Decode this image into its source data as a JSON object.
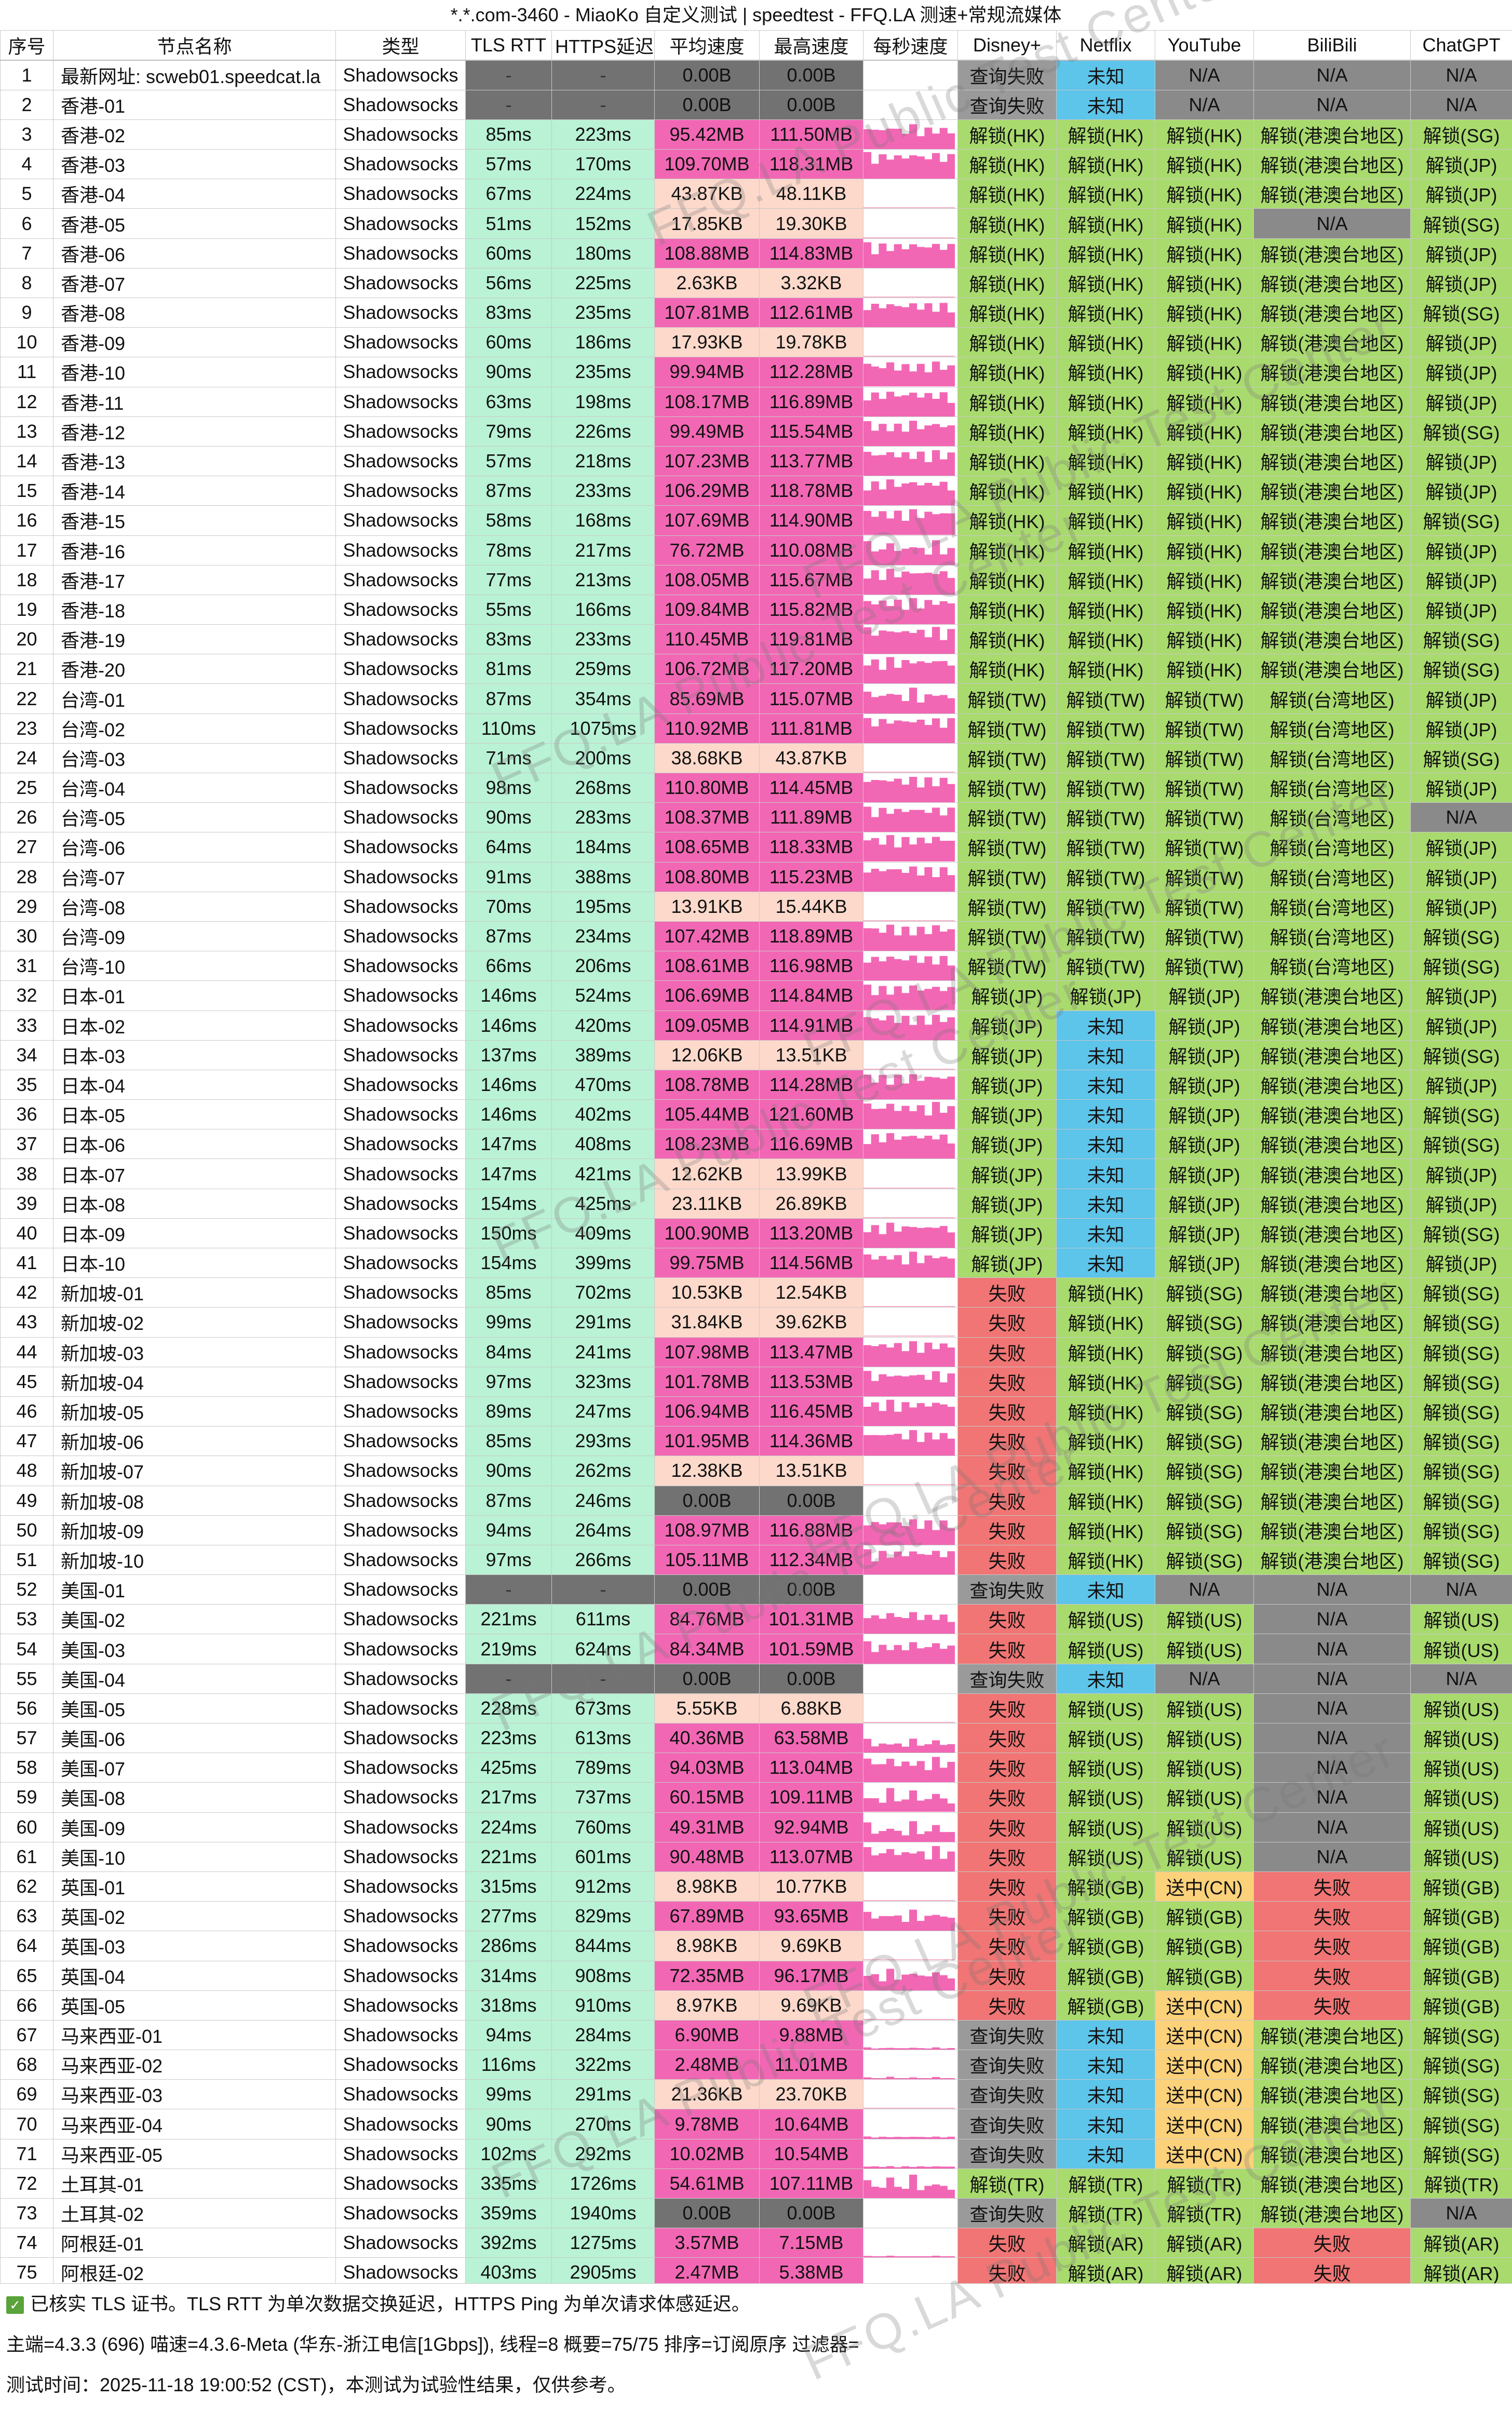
{
  "title": "*.*.com-3460 - MiaoKo 自定义测试 | speedtest - FFQ.LA 测速+常规流媒体",
  "columns": [
    "序号",
    "节点名称",
    "类型",
    "TLS RTT",
    "HTTPS延迟",
    "平均速度",
    "最高速度",
    "每秒速度",
    "Disney+",
    "Netflix",
    "YouTube",
    "BiliBili",
    "ChatGPT"
  ],
  "rows": [
    [
      "1",
      "最新网址: scweb01.speedcat.la",
      "Shadowsocks",
      "-",
      "-",
      "0.00B",
      "0.00B",
      "",
      "查询失败",
      "未知",
      "N/A",
      "N/A",
      "N/A"
    ],
    [
      "2",
      "香港-01",
      "Shadowsocks",
      "-",
      "-",
      "0.00B",
      "0.00B",
      "",
      "查询失败",
      "未知",
      "N/A",
      "N/A",
      "N/A"
    ],
    [
      "3",
      "香港-02",
      "Shadowsocks",
      "85ms",
      "223ms",
      "95.42MB",
      "111.50MB",
      "",
      "解锁(HK)",
      "解锁(HK)",
      "解锁(HK)",
      "解锁(港澳台地区)",
      "解锁(SG)"
    ],
    [
      "4",
      "香港-03",
      "Shadowsocks",
      "57ms",
      "170ms",
      "109.70MB",
      "118.31MB",
      "",
      "解锁(HK)",
      "解锁(HK)",
      "解锁(HK)",
      "解锁(港澳台地区)",
      "解锁(JP)"
    ],
    [
      "5",
      "香港-04",
      "Shadowsocks",
      "67ms",
      "224ms",
      "43.87KB",
      "48.11KB",
      "",
      "解锁(HK)",
      "解锁(HK)",
      "解锁(HK)",
      "解锁(港澳台地区)",
      "解锁(JP)"
    ],
    [
      "6",
      "香港-05",
      "Shadowsocks",
      "51ms",
      "152ms",
      "17.85KB",
      "19.30KB",
      "",
      "解锁(HK)",
      "解锁(HK)",
      "解锁(HK)",
      "N/A",
      "解锁(SG)"
    ],
    [
      "7",
      "香港-06",
      "Shadowsocks",
      "60ms",
      "180ms",
      "108.88MB",
      "114.83MB",
      "",
      "解锁(HK)",
      "解锁(HK)",
      "解锁(HK)",
      "解锁(港澳台地区)",
      "解锁(JP)"
    ],
    [
      "8",
      "香港-07",
      "Shadowsocks",
      "56ms",
      "225ms",
      "2.63KB",
      "3.32KB",
      "",
      "解锁(HK)",
      "解锁(HK)",
      "解锁(HK)",
      "解锁(港澳台地区)",
      "解锁(JP)"
    ],
    [
      "9",
      "香港-08",
      "Shadowsocks",
      "83ms",
      "235ms",
      "107.81MB",
      "112.61MB",
      "",
      "解锁(HK)",
      "解锁(HK)",
      "解锁(HK)",
      "解锁(港澳台地区)",
      "解锁(SG)"
    ],
    [
      "10",
      "香港-09",
      "Shadowsocks",
      "60ms",
      "186ms",
      "17.93KB",
      "19.78KB",
      "",
      "解锁(HK)",
      "解锁(HK)",
      "解锁(HK)",
      "解锁(港澳台地区)",
      "解锁(JP)"
    ],
    [
      "11",
      "香港-10",
      "Shadowsocks",
      "90ms",
      "235ms",
      "99.94MB",
      "112.28MB",
      "",
      "解锁(HK)",
      "解锁(HK)",
      "解锁(HK)",
      "解锁(港澳台地区)",
      "解锁(JP)"
    ],
    [
      "12",
      "香港-11",
      "Shadowsocks",
      "63ms",
      "198ms",
      "108.17MB",
      "116.89MB",
      "",
      "解锁(HK)",
      "解锁(HK)",
      "解锁(HK)",
      "解锁(港澳台地区)",
      "解锁(JP)"
    ],
    [
      "13",
      "香港-12",
      "Shadowsocks",
      "79ms",
      "226ms",
      "99.49MB",
      "115.54MB",
      "",
      "解锁(HK)",
      "解锁(HK)",
      "解锁(HK)",
      "解锁(港澳台地区)",
      "解锁(SG)"
    ],
    [
      "14",
      "香港-13",
      "Shadowsocks",
      "57ms",
      "218ms",
      "107.23MB",
      "113.77MB",
      "",
      "解锁(HK)",
      "解锁(HK)",
      "解锁(HK)",
      "解锁(港澳台地区)",
      "解锁(JP)"
    ],
    [
      "15",
      "香港-14",
      "Shadowsocks",
      "87ms",
      "233ms",
      "106.29MB",
      "118.78MB",
      "",
      "解锁(HK)",
      "解锁(HK)",
      "解锁(HK)",
      "解锁(港澳台地区)",
      "解锁(JP)"
    ],
    [
      "16",
      "香港-15",
      "Shadowsocks",
      "58ms",
      "168ms",
      "107.69MB",
      "114.90MB",
      "",
      "解锁(HK)",
      "解锁(HK)",
      "解锁(HK)",
      "解锁(港澳台地区)",
      "解锁(SG)"
    ],
    [
      "17",
      "香港-16",
      "Shadowsocks",
      "78ms",
      "217ms",
      "76.72MB",
      "110.08MB",
      "",
      "解锁(HK)",
      "解锁(HK)",
      "解锁(HK)",
      "解锁(港澳台地区)",
      "解锁(JP)"
    ],
    [
      "18",
      "香港-17",
      "Shadowsocks",
      "77ms",
      "213ms",
      "108.05MB",
      "115.67MB",
      "",
      "解锁(HK)",
      "解锁(HK)",
      "解锁(HK)",
      "解锁(港澳台地区)",
      "解锁(JP)"
    ],
    [
      "19",
      "香港-18",
      "Shadowsocks",
      "55ms",
      "166ms",
      "109.84MB",
      "115.82MB",
      "",
      "解锁(HK)",
      "解锁(HK)",
      "解锁(HK)",
      "解锁(港澳台地区)",
      "解锁(JP)"
    ],
    [
      "20",
      "香港-19",
      "Shadowsocks",
      "83ms",
      "233ms",
      "110.45MB",
      "119.81MB",
      "",
      "解锁(HK)",
      "解锁(HK)",
      "解锁(HK)",
      "解锁(港澳台地区)",
      "解锁(SG)"
    ],
    [
      "21",
      "香港-20",
      "Shadowsocks",
      "81ms",
      "259ms",
      "106.72MB",
      "117.20MB",
      "",
      "解锁(HK)",
      "解锁(HK)",
      "解锁(HK)",
      "解锁(港澳台地区)",
      "解锁(SG)"
    ],
    [
      "22",
      "台湾-01",
      "Shadowsocks",
      "87ms",
      "354ms",
      "85.69MB",
      "115.07MB",
      "",
      "解锁(TW)",
      "解锁(TW)",
      "解锁(TW)",
      "解锁(台湾地区)",
      "解锁(JP)"
    ],
    [
      "23",
      "台湾-02",
      "Shadowsocks",
      "110ms",
      "1075ms",
      "110.92MB",
      "111.81MB",
      "",
      "解锁(TW)",
      "解锁(TW)",
      "解锁(TW)",
      "解锁(台湾地区)",
      "解锁(JP)"
    ],
    [
      "24",
      "台湾-03",
      "Shadowsocks",
      "71ms",
      "200ms",
      "38.68KB",
      "43.87KB",
      "",
      "解锁(TW)",
      "解锁(TW)",
      "解锁(TW)",
      "解锁(台湾地区)",
      "解锁(SG)"
    ],
    [
      "25",
      "台湾-04",
      "Shadowsocks",
      "98ms",
      "268ms",
      "110.80MB",
      "114.45MB",
      "",
      "解锁(TW)",
      "解锁(TW)",
      "解锁(TW)",
      "解锁(台湾地区)",
      "解锁(JP)"
    ],
    [
      "26",
      "台湾-05",
      "Shadowsocks",
      "90ms",
      "283ms",
      "108.37MB",
      "111.89MB",
      "",
      "解锁(TW)",
      "解锁(TW)",
      "解锁(TW)",
      "解锁(台湾地区)",
      "N/A"
    ],
    [
      "27",
      "台湾-06",
      "Shadowsocks",
      "64ms",
      "184ms",
      "108.65MB",
      "118.33MB",
      "",
      "解锁(TW)",
      "解锁(TW)",
      "解锁(TW)",
      "解锁(台湾地区)",
      "解锁(JP)"
    ],
    [
      "28",
      "台湾-07",
      "Shadowsocks",
      "91ms",
      "388ms",
      "108.80MB",
      "115.23MB",
      "",
      "解锁(TW)",
      "解锁(TW)",
      "解锁(TW)",
      "解锁(台湾地区)",
      "解锁(JP)"
    ],
    [
      "29",
      "台湾-08",
      "Shadowsocks",
      "70ms",
      "195ms",
      "13.91KB",
      "15.44KB",
      "",
      "解锁(TW)",
      "解锁(TW)",
      "解锁(TW)",
      "解锁(台湾地区)",
      "解锁(JP)"
    ],
    [
      "30",
      "台湾-09",
      "Shadowsocks",
      "87ms",
      "234ms",
      "107.42MB",
      "118.89MB",
      "",
      "解锁(TW)",
      "解锁(TW)",
      "解锁(TW)",
      "解锁(台湾地区)",
      "解锁(SG)"
    ],
    [
      "31",
      "台湾-10",
      "Shadowsocks",
      "66ms",
      "206ms",
      "108.61MB",
      "116.98MB",
      "",
      "解锁(TW)",
      "解锁(TW)",
      "解锁(TW)",
      "解锁(台湾地区)",
      "解锁(SG)"
    ],
    [
      "32",
      "日本-01",
      "Shadowsocks",
      "146ms",
      "524ms",
      "106.69MB",
      "114.84MB",
      "",
      "解锁(JP)",
      "解锁(JP)",
      "解锁(JP)",
      "解锁(港澳台地区)",
      "解锁(JP)"
    ],
    [
      "33",
      "日本-02",
      "Shadowsocks",
      "146ms",
      "420ms",
      "109.05MB",
      "114.91MB",
      "",
      "解锁(JP)",
      "未知",
      "解锁(JP)",
      "解锁(港澳台地区)",
      "解锁(JP)"
    ],
    [
      "34",
      "日本-03",
      "Shadowsocks",
      "137ms",
      "389ms",
      "12.06KB",
      "13.51KB",
      "",
      "解锁(JP)",
      "未知",
      "解锁(JP)",
      "解锁(港澳台地区)",
      "解锁(SG)"
    ],
    [
      "35",
      "日本-04",
      "Shadowsocks",
      "146ms",
      "470ms",
      "108.78MB",
      "114.28MB",
      "",
      "解锁(JP)",
      "未知",
      "解锁(JP)",
      "解锁(港澳台地区)",
      "解锁(JP)"
    ],
    [
      "36",
      "日本-05",
      "Shadowsocks",
      "146ms",
      "402ms",
      "105.44MB",
      "121.60MB",
      "",
      "解锁(JP)",
      "未知",
      "解锁(JP)",
      "解锁(港澳台地区)",
      "解锁(SG)"
    ],
    [
      "37",
      "日本-06",
      "Shadowsocks",
      "147ms",
      "408ms",
      "108.23MB",
      "116.69MB",
      "",
      "解锁(JP)",
      "未知",
      "解锁(JP)",
      "解锁(港澳台地区)",
      "解锁(SG)"
    ],
    [
      "38",
      "日本-07",
      "Shadowsocks",
      "147ms",
      "421ms",
      "12.62KB",
      "13.99KB",
      "",
      "解锁(JP)",
      "未知",
      "解锁(JP)",
      "解锁(港澳台地区)",
      "解锁(JP)"
    ],
    [
      "39",
      "日本-08",
      "Shadowsocks",
      "154ms",
      "425ms",
      "23.11KB",
      "26.89KB",
      "",
      "解锁(JP)",
      "未知",
      "解锁(JP)",
      "解锁(港澳台地区)",
      "解锁(JP)"
    ],
    [
      "40",
      "日本-09",
      "Shadowsocks",
      "150ms",
      "409ms",
      "100.90MB",
      "113.20MB",
      "",
      "解锁(JP)",
      "未知",
      "解锁(JP)",
      "解锁(港澳台地区)",
      "解锁(SG)"
    ],
    [
      "41",
      "日本-10",
      "Shadowsocks",
      "154ms",
      "399ms",
      "99.75MB",
      "114.56MB",
      "",
      "解锁(JP)",
      "未知",
      "解锁(JP)",
      "解锁(港澳台地区)",
      "解锁(JP)"
    ],
    [
      "42",
      "新加坡-01",
      "Shadowsocks",
      "85ms",
      "702ms",
      "10.53KB",
      "12.54KB",
      "",
      "失败",
      "解锁(HK)",
      "解锁(SG)",
      "解锁(港澳台地区)",
      "解锁(SG)"
    ],
    [
      "43",
      "新加坡-02",
      "Shadowsocks",
      "99ms",
      "291ms",
      "31.84KB",
      "39.62KB",
      "",
      "失败",
      "解锁(HK)",
      "解锁(SG)",
      "解锁(港澳台地区)",
      "解锁(SG)"
    ],
    [
      "44",
      "新加坡-03",
      "Shadowsocks",
      "84ms",
      "241ms",
      "107.98MB",
      "113.47MB",
      "",
      "失败",
      "解锁(HK)",
      "解锁(SG)",
      "解锁(港澳台地区)",
      "解锁(SG)"
    ],
    [
      "45",
      "新加坡-04",
      "Shadowsocks",
      "97ms",
      "323ms",
      "101.78MB",
      "113.53MB",
      "",
      "失败",
      "解锁(HK)",
      "解锁(SG)",
      "解锁(港澳台地区)",
      "解锁(SG)"
    ],
    [
      "46",
      "新加坡-05",
      "Shadowsocks",
      "89ms",
      "247ms",
      "106.94MB",
      "116.45MB",
      "",
      "失败",
      "解锁(HK)",
      "解锁(SG)",
      "解锁(港澳台地区)",
      "解锁(SG)"
    ],
    [
      "47",
      "新加坡-06",
      "Shadowsocks",
      "85ms",
      "293ms",
      "101.95MB",
      "114.36MB",
      "",
      "失败",
      "解锁(HK)",
      "解锁(SG)",
      "解锁(港澳台地区)",
      "解锁(SG)"
    ],
    [
      "48",
      "新加坡-07",
      "Shadowsocks",
      "90ms",
      "262ms",
      "12.38KB",
      "13.51KB",
      "",
      "失败",
      "解锁(HK)",
      "解锁(SG)",
      "解锁(港澳台地区)",
      "解锁(SG)"
    ],
    [
      "49",
      "新加坡-08",
      "Shadowsocks",
      "87ms",
      "246ms",
      "0.00B",
      "0.00B",
      "",
      "失败",
      "解锁(HK)",
      "解锁(SG)",
      "解锁(港澳台地区)",
      "解锁(SG)"
    ],
    [
      "50",
      "新加坡-09",
      "Shadowsocks",
      "94ms",
      "264ms",
      "108.97MB",
      "116.88MB",
      "",
      "失败",
      "解锁(HK)",
      "解锁(SG)",
      "解锁(港澳台地区)",
      "解锁(SG)"
    ],
    [
      "51",
      "新加坡-10",
      "Shadowsocks",
      "97ms",
      "266ms",
      "105.11MB",
      "112.34MB",
      "",
      "失败",
      "解锁(HK)",
      "解锁(SG)",
      "解锁(港澳台地区)",
      "解锁(SG)"
    ],
    [
      "52",
      "美国-01",
      "Shadowsocks",
      "-",
      "-",
      "0.00B",
      "0.00B",
      "",
      "查询失败",
      "未知",
      "N/A",
      "N/A",
      "N/A"
    ],
    [
      "53",
      "美国-02",
      "Shadowsocks",
      "221ms",
      "611ms",
      "84.76MB",
      "101.31MB",
      "",
      "失败",
      "解锁(US)",
      "解锁(US)",
      "N/A",
      "解锁(US)"
    ],
    [
      "54",
      "美国-03",
      "Shadowsocks",
      "219ms",
      "624ms",
      "84.34MB",
      "101.59MB",
      "",
      "失败",
      "解锁(US)",
      "解锁(US)",
      "N/A",
      "解锁(US)"
    ],
    [
      "55",
      "美国-04",
      "Shadowsocks",
      "-",
      "-",
      "0.00B",
      "0.00B",
      "",
      "查询失败",
      "未知",
      "N/A",
      "N/A",
      "N/A"
    ],
    [
      "56",
      "美国-05",
      "Shadowsocks",
      "228ms",
      "673ms",
      "5.55KB",
      "6.88KB",
      "",
      "失败",
      "解锁(US)",
      "解锁(US)",
      "N/A",
      "解锁(US)"
    ],
    [
      "57",
      "美国-06",
      "Shadowsocks",
      "223ms",
      "613ms",
      "40.36MB",
      "63.58MB",
      "",
      "失败",
      "解锁(US)",
      "解锁(US)",
      "N/A",
      "解锁(US)"
    ],
    [
      "58",
      "美国-07",
      "Shadowsocks",
      "425ms",
      "789ms",
      "94.03MB",
      "113.04MB",
      "",
      "失败",
      "解锁(US)",
      "解锁(US)",
      "N/A",
      "解锁(US)"
    ],
    [
      "59",
      "美国-08",
      "Shadowsocks",
      "217ms",
      "737ms",
      "60.15MB",
      "109.11MB",
      "",
      "失败",
      "解锁(US)",
      "解锁(US)",
      "N/A",
      "解锁(US)"
    ],
    [
      "60",
      "美国-09",
      "Shadowsocks",
      "224ms",
      "760ms",
      "49.31MB",
      "92.94MB",
      "",
      "失败",
      "解锁(US)",
      "解锁(US)",
      "N/A",
      "解锁(US)"
    ],
    [
      "61",
      "美国-10",
      "Shadowsocks",
      "221ms",
      "601ms",
      "90.48MB",
      "113.07MB",
      "",
      "失败",
      "解锁(US)",
      "解锁(US)",
      "N/A",
      "解锁(US)"
    ],
    [
      "62",
      "英国-01",
      "Shadowsocks",
      "315ms",
      "912ms",
      "8.98KB",
      "10.77KB",
      "",
      "失败",
      "解锁(GB)",
      "送中(CN)",
      "失败",
      "解锁(GB)"
    ],
    [
      "63",
      "英国-02",
      "Shadowsocks",
      "277ms",
      "829ms",
      "67.89MB",
      "93.65MB",
      "",
      "失败",
      "解锁(GB)",
      "解锁(GB)",
      "失败",
      "解锁(GB)"
    ],
    [
      "64",
      "英国-03",
      "Shadowsocks",
      "286ms",
      "844ms",
      "8.98KB",
      "9.69KB",
      "",
      "失败",
      "解锁(GB)",
      "解锁(GB)",
      "失败",
      "解锁(GB)"
    ],
    [
      "65",
      "英国-04",
      "Shadowsocks",
      "314ms",
      "908ms",
      "72.35MB",
      "96.17MB",
      "",
      "失败",
      "解锁(GB)",
      "解锁(GB)",
      "失败",
      "解锁(GB)"
    ],
    [
      "66",
      "英国-05",
      "Shadowsocks",
      "318ms",
      "910ms",
      "8.97KB",
      "9.69KB",
      "",
      "失败",
      "解锁(GB)",
      "送中(CN)",
      "失败",
      "解锁(GB)"
    ],
    [
      "67",
      "马来西亚-01",
      "Shadowsocks",
      "94ms",
      "284ms",
      "6.90MB",
      "9.88MB",
      "",
      "查询失败",
      "未知",
      "送中(CN)",
      "解锁(港澳台地区)",
      "解锁(SG)"
    ],
    [
      "68",
      "马来西亚-02",
      "Shadowsocks",
      "116ms",
      "322ms",
      "2.48MB",
      "11.01MB",
      "",
      "查询失败",
      "未知",
      "送中(CN)",
      "解锁(港澳台地区)",
      "解锁(SG)"
    ],
    [
      "69",
      "马来西亚-03",
      "Shadowsocks",
      "99ms",
      "291ms",
      "21.36KB",
      "23.70KB",
      "",
      "查询失败",
      "未知",
      "送中(CN)",
      "解锁(港澳台地区)",
      "解锁(SG)"
    ],
    [
      "70",
      "马来西亚-04",
      "Shadowsocks",
      "90ms",
      "270ms",
      "9.78MB",
      "10.64MB",
      "",
      "查询失败",
      "未知",
      "送中(CN)",
      "解锁(港澳台地区)",
      "解锁(SG)"
    ],
    [
      "71",
      "马来西亚-05",
      "Shadowsocks",
      "102ms",
      "292ms",
      "10.02MB",
      "10.54MB",
      "",
      "查询失败",
      "未知",
      "送中(CN)",
      "解锁(港澳台地区)",
      "解锁(SG)"
    ],
    [
      "72",
      "土耳其-01",
      "Shadowsocks",
      "335ms",
      "1726ms",
      "54.61MB",
      "107.11MB",
      "",
      "解锁(TR)",
      "解锁(TR)",
      "解锁(TR)",
      "解锁(港澳台地区)",
      "解锁(TR)"
    ],
    [
      "73",
      "土耳其-02",
      "Shadowsocks",
      "359ms",
      "1940ms",
      "0.00B",
      "0.00B",
      "",
      "查询失败",
      "解锁(TR)",
      "解锁(TR)",
      "解锁(港澳台地区)",
      "N/A"
    ],
    [
      "74",
      "阿根廷-01",
      "Shadowsocks",
      "392ms",
      "1275ms",
      "3.57MB",
      "7.15MB",
      "",
      "失败",
      "解锁(AR)",
      "解锁(AR)",
      "失败",
      "解锁(AR)"
    ],
    [
      "75",
      "阿根廷-02",
      "Shadowsocks",
      "403ms",
      "2905ms",
      "2.47MB",
      "5.38MB",
      "",
      "失败",
      "解锁(AR)",
      "解锁(AR)",
      "失败",
      "解锁(AR)"
    ]
  ],
  "footer": {
    "line1": "已核实 TLS 证书。TLS RTT 为单次数据交换延迟，HTTPS Ping 为单次请求体感延迟。",
    "line2": "主端=4.3.3 (696) 喵速=4.3.6-Meta (华东-浙江电信[1Gbps]), 线程=8 概要=75/75 排序=订阅原序 过滤器=",
    "line3": "测试时间：2025-11-18 19:00:52 (CST)，本测试为试验性结果，仅供参考。"
  },
  "watermark": "FFQ.LA Public Test Center",
  "colors": {
    "tls": "#b9f2d5",
    "speed_high": "#f267b4",
    "speed_low": "#fdd9cb",
    "na_dark": "#727272",
    "unlock": "#a9da6e",
    "fail": "#f07574",
    "query_fail": "#9a9a9a",
    "unknown": "#5dc4ea",
    "na": "#8a8a8a",
    "sending": "#fbd17a"
  }
}
